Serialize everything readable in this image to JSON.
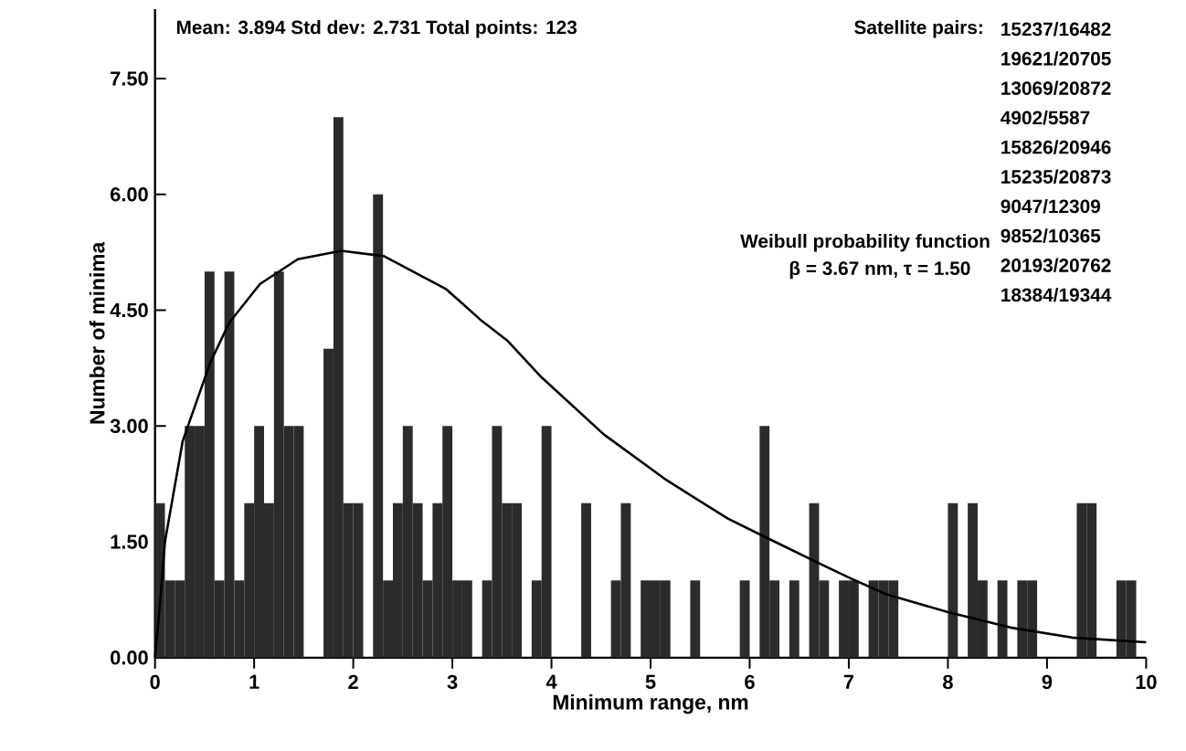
{
  "chart_data": {
    "type": "histogram",
    "xlabel": "Minimum range, nm",
    "ylabel": "Number of minima",
    "bins": [
      0,
      0.1,
      0.2,
      0.3,
      0.4,
      0.5,
      0.6,
      0.7,
      0.8,
      0.9,
      1,
      1.1,
      1.2,
      1.3,
      1.4,
      1.5,
      1.6,
      1.7,
      1.8,
      1.9,
      2,
      2.1,
      2.2,
      2.3,
      2.4,
      2.5,
      2.6,
      2.7,
      2.8,
      2.9,
      3,
      3.1,
      3.2,
      3.3,
      3.4,
      3.5,
      3.6,
      3.7,
      3.8,
      3.9,
      4,
      4.1,
      4.2,
      4.3,
      4.4,
      4.5,
      4.6,
      4.7,
      4.8,
      4.9,
      5,
      5.1,
      5.2,
      5.3,
      5.4,
      5.5,
      5.6,
      5.7,
      5.8,
      5.9,
      6,
      6.1,
      6.2,
      6.3,
      6.4,
      6.5,
      6.6,
      6.7,
      6.8,
      6.9,
      7,
      7.1,
      7.2,
      7.3,
      7.4,
      7.5,
      7.6,
      7.7,
      7.8,
      7.9,
      8,
      8.1,
      8.2,
      8.3,
      8.4,
      8.5,
      8.6,
      8.7,
      8.8,
      8.9,
      9,
      9.1,
      9.2,
      9.3,
      9.4,
      9.5,
      9.6,
      9.7,
      9.8,
      9.9,
      10
    ],
    "values": [
      2,
      1,
      1,
      3,
      3,
      5,
      1,
      5,
      1,
      2,
      3,
      2,
      5,
      3,
      3,
      0,
      0,
      4,
      7,
      2,
      2,
      0,
      6,
      1,
      2,
      3,
      2,
      1,
      2,
      3,
      1,
      1,
      0,
      1,
      3,
      2,
      2,
      0,
      1,
      3,
      0,
      0,
      0,
      2,
      0,
      0,
      1,
      2,
      0,
      1,
      1,
      1,
      0,
      0,
      1,
      0,
      0,
      0,
      0,
      1,
      0,
      3,
      1,
      0,
      1,
      0,
      2,
      1,
      0,
      1,
      1,
      0,
      1,
      1,
      1,
      0,
      0,
      0,
      0,
      0,
      2,
      0,
      2,
      1,
      0,
      1,
      0,
      1,
      1,
      0,
      0,
      0,
      0,
      2,
      2,
      0,
      0,
      1,
      1,
      0
    ],
    "color": "#2b2b2b",
    "series": [
      {
        "type": "line",
        "name": "Weibull probability function",
        "color": "#000000",
        "x": [
          0,
          0.05,
          0.1,
          0.28,
          0.56,
          0.75,
          1.06,
          1.44,
          1.88,
          2.31,
          2.94,
          3.28,
          3.56,
          3.9,
          4.53,
          5.16,
          5.78,
          6.16,
          6.72,
          7.03,
          7.38,
          8.0,
          8.63,
          9.25,
          10
        ],
        "values": [
          0,
          0.7,
          1.5,
          2.81,
          3.83,
          4.34,
          4.84,
          5.16,
          5.27,
          5.2,
          4.77,
          4.38,
          4.1,
          3.63,
          2.89,
          2.3,
          1.8,
          1.56,
          1.21,
          1.02,
          0.82,
          0.59,
          0.39,
          0.26,
          0.2
        ]
      }
    ],
    "xlim": [
      0,
      10
    ],
    "ylim": [
      0,
      8.4
    ],
    "xticks": [
      0,
      1,
      2,
      3,
      4,
      5,
      6,
      7,
      8,
      9,
      10
    ],
    "yticks": [
      {
        "value": 0,
        "label": "0.00"
      },
      {
        "value": 1.5,
        "label": "1.50"
      },
      {
        "value": 3,
        "label": "3.00"
      },
      {
        "value": 4.5,
        "label": "4.50"
      },
      {
        "value": 6,
        "label": "6.00"
      },
      {
        "value": 7.5,
        "label": "7.50"
      }
    ],
    "annotations": [
      "Mean: 3.894 Std dev: 2.731 Total points: 123",
      "Satellite pairs:",
      "15237/16482",
      "19621/20705",
      "13069/20872",
      "4902/5587",
      "15826/20946",
      "15235/20873",
      "9047/12309",
      "9852/10365",
      "20193/20762",
      "18384/19344",
      "β = 3.67 nm, τ = 1.50"
    ],
    "marker": "none",
    "line_style": "solid"
  }
}
